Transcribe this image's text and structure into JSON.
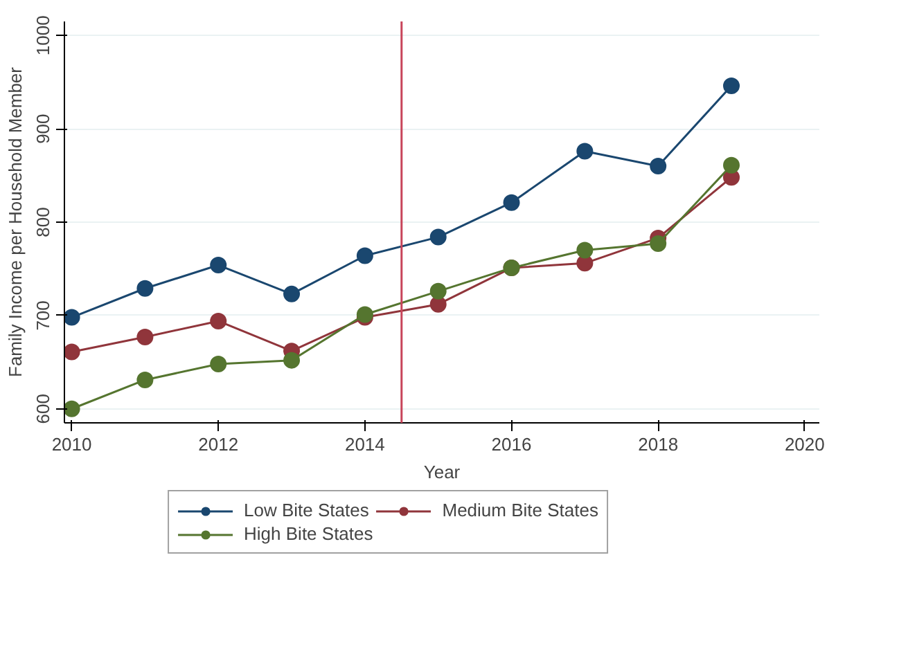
{
  "chart_data": {
    "type": "line",
    "xlabel": "Year",
    "ylabel": "Family Income per Household Member",
    "x": [
      2010,
      2011,
      2012,
      2013,
      2014,
      2015,
      2016,
      2017,
      2018,
      2019
    ],
    "series": [
      {
        "name": "Low Bite States",
        "color": "#1a476f",
        "values": [
          698,
          729,
          754,
          723,
          764,
          784,
          821,
          876,
          860,
          946
        ]
      },
      {
        "name": "Medium Bite States",
        "color": "#90353b",
        "values": [
          661,
          677,
          694,
          662,
          698,
          712,
          751,
          756,
          783,
          848
        ]
      },
      {
        "name": "High Bite States",
        "color": "#55752f",
        "values": [
          600,
          631,
          648,
          652,
          701,
          726,
          751,
          770,
          777,
          861
        ]
      }
    ],
    "xlim": [
      2009.9,
      2020.2
    ],
    "xticks": [
      2010,
      2012,
      2014,
      2016,
      2018,
      2020
    ],
    "ylim": [
      585,
      1015
    ],
    "yticks": [
      600,
      700,
      800,
      900,
      1000
    ],
    "ref_lines": [
      {
        "axis": "x",
        "value": 2014.5,
        "color": "#c8445a"
      }
    ],
    "grid": "y",
    "legend": "bottom",
    "marker": "circle",
    "line_style": "solid"
  }
}
